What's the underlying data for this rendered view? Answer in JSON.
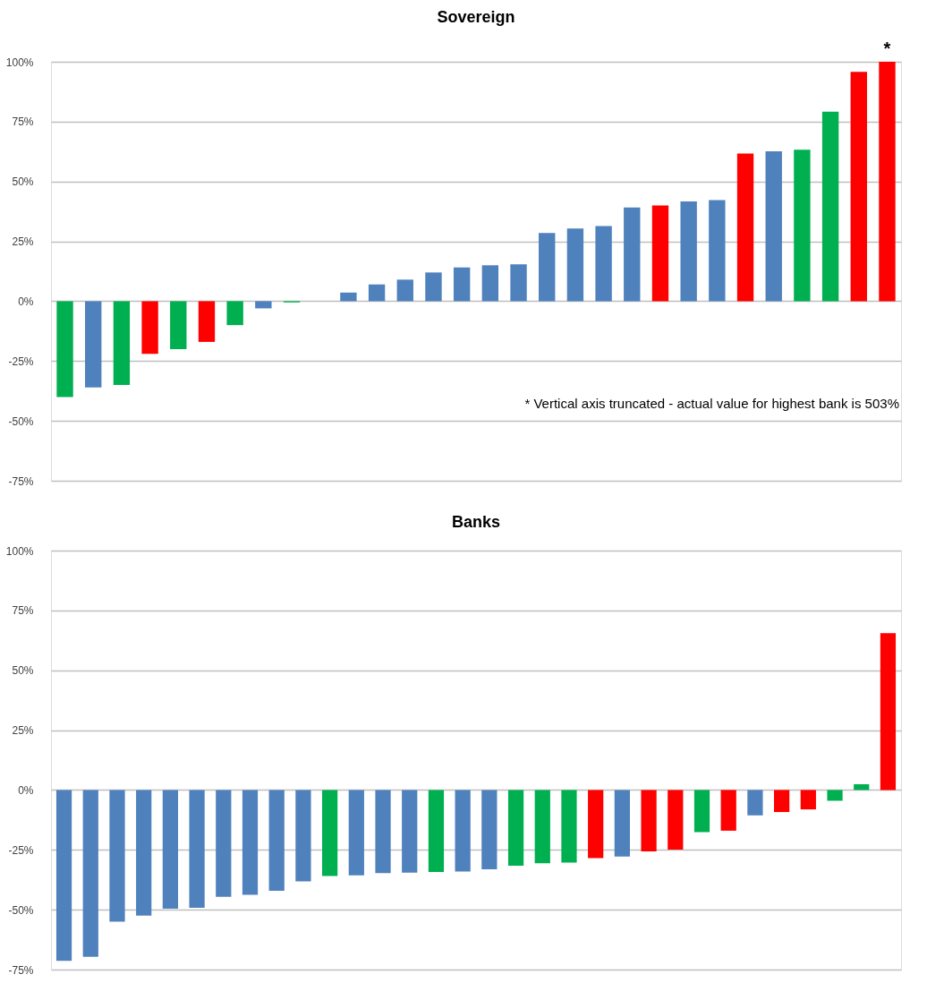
{
  "chart_data": [
    {
      "type": "bar",
      "title": "Sovereign",
      "categories": [
        null,
        null,
        null,
        null,
        null,
        null,
        null,
        null,
        null,
        null,
        null,
        null,
        null,
        null,
        null,
        null,
        null,
        null,
        null,
        null,
        null,
        null,
        null,
        null,
        null,
        null,
        null,
        null,
        null,
        null
      ],
      "values": [
        -40,
        -36,
        -35,
        -22,
        -20,
        -17,
        -10,
        -3,
        -0.5,
        0,
        3.6,
        7,
        9,
        12,
        14.1,
        15,
        15.4,
        28.5,
        30.4,
        31.4,
        39.1,
        40,
        41.7,
        42.2,
        61.7,
        62.6,
        63.3,
        79.2,
        95.8,
        100
      ],
      "colors": [
        "#00b050",
        "#4f81bd",
        "#00b050",
        "#ff0000",
        "#00b050",
        "#ff0000",
        "#00b050",
        "#4f81bd",
        "#00b050",
        "#4f81bd",
        "#4f81bd",
        "#4f81bd",
        "#4f81bd",
        "#4f81bd",
        "#4f81bd",
        "#4f81bd",
        "#4f81bd",
        "#4f81bd",
        "#4f81bd",
        "#4f81bd",
        "#4f81bd",
        "#ff0000",
        "#4f81bd",
        "#4f81bd",
        "#ff0000",
        "#4f81bd",
        "#00b050",
        "#00b050",
        "#ff0000",
        "#ff0000"
      ],
      "ylim": [
        -75,
        100
      ],
      "yticks": [
        {
          "value": -75,
          "label": "-75%"
        },
        {
          "value": -50,
          "label": "-50%"
        },
        {
          "value": -25,
          "label": "-25%"
        },
        {
          "value": 0,
          "label": "0%"
        },
        {
          "value": 25,
          "label": "25%"
        },
        {
          "value": 50,
          "label": "50%"
        },
        {
          "value": 75,
          "label": "75%"
        },
        {
          "value": 100,
          "label": "100%"
        }
      ],
      "grid": "y",
      "tick_labels": "y",
      "annotations": [
        {
          "text": "*",
          "y": 100
        },
        "* Vertical axis truncated - actual value for highest bank is 503%"
      ]
    },
    {
      "type": "bar",
      "title": "Banks",
      "categories": [
        null,
        null,
        null,
        null,
        null,
        null,
        null,
        null,
        null,
        null,
        null,
        null,
        null,
        null,
        null,
        null,
        null,
        null,
        null,
        null,
        null,
        null,
        null,
        null,
        null,
        null,
        null,
        null,
        null,
        null,
        null,
        null
      ],
      "values": [
        -71.4,
        -69.7,
        -55,
        -52.5,
        -49.6,
        -49.2,
        -44.6,
        -43.8,
        -42.1,
        -38.2,
        -35.9,
        -35.6,
        -34.7,
        -34.5,
        -34.2,
        -34.1,
        -33.1,
        -31.6,
        -30.6,
        -30.3,
        -28.4,
        -27.8,
        -25.6,
        -24.9,
        -17.6,
        -17,
        -10.6,
        -9.2,
        -8.1,
        -4.5,
        2.4,
        65.5
      ],
      "colors": [
        "#4f81bd",
        "#4f81bd",
        "#4f81bd",
        "#4f81bd",
        "#4f81bd",
        "#4f81bd",
        "#4f81bd",
        "#4f81bd",
        "#4f81bd",
        "#4f81bd",
        "#00b050",
        "#4f81bd",
        "#4f81bd",
        "#4f81bd",
        "#00b050",
        "#4f81bd",
        "#4f81bd",
        "#00b050",
        "#00b050",
        "#00b050",
        "#ff0000",
        "#4f81bd",
        "#ff0000",
        "#ff0000",
        "#00b050",
        "#ff0000",
        "#4f81bd",
        "#ff0000",
        "#ff0000",
        "#00b050",
        "#00b050",
        "#ff0000"
      ],
      "ylim": [
        -75,
        100
      ],
      "yticks": [
        {
          "value": -75,
          "label": "-75%"
        },
        {
          "value": -50,
          "label": "-50%"
        },
        {
          "value": -25,
          "label": "-25%"
        },
        {
          "value": 0,
          "label": "0%"
        },
        {
          "value": 25,
          "label": "25%"
        },
        {
          "value": 50,
          "label": "50%"
        },
        {
          "value": 75,
          "label": "75%"
        },
        {
          "value": 100,
          "label": "100%"
        }
      ],
      "grid": "y",
      "tick_labels": "y"
    }
  ]
}
